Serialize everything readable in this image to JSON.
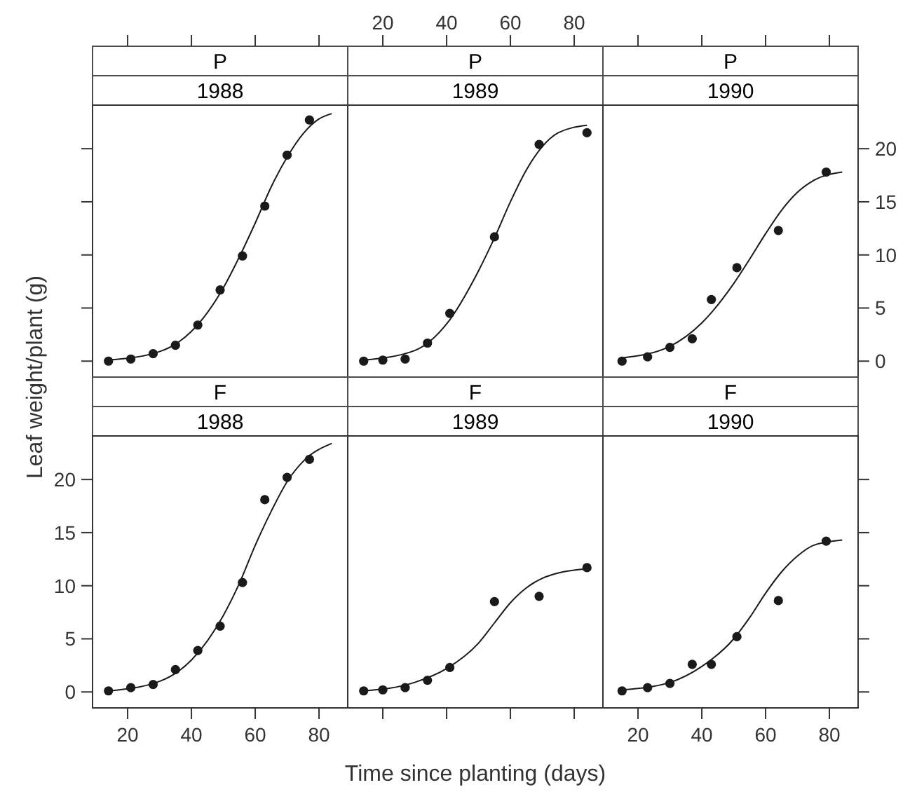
{
  "chart_data": [
    {
      "type": "scatter",
      "title": "P",
      "subtitle": "1988",
      "ylabel": "Leaf weight/plant (g)",
      "xlim": [
        9,
        89
      ],
      "xticks": [
        20,
        40,
        60,
        80
      ],
      "ylim": [
        -1.5,
        24.1
      ],
      "yticks": [
        0,
        5,
        10,
        15,
        20
      ],
      "tick_labels": false,
      "series": [
        {
          "marker": "circle",
          "color": "#1a1a1a",
          "x": [
            14,
            21,
            28,
            35,
            42,
            49,
            56,
            63,
            70,
            77
          ],
          "values": [
            0,
            0.2,
            0.7,
            1.5,
            3.4,
            6.7,
            9.9,
            14.6,
            19.4,
            22.7
          ]
        },
        {
          "type": "line",
          "marker": "none",
          "color": "#1a1a1a",
          "x": [
            14,
            30,
            40,
            50,
            55,
            60,
            65,
            70,
            75,
            80,
            84
          ],
          "values": [
            0.1,
            0.9,
            2.8,
            6.9,
            9.8,
            13,
            16.4,
            19.2,
            21.4,
            22.8,
            23.3
          ]
        }
      ]
    },
    {
      "type": "scatter",
      "title": "P",
      "subtitle": "1989",
      "xlim": [
        9,
        89
      ],
      "xticks": [
        20,
        40,
        60,
        80
      ],
      "ylim": [
        -1.5,
        24.1
      ],
      "yticks": [
        0,
        5,
        10,
        15,
        20
      ],
      "tick_labels": "x",
      "series": [
        {
          "marker": "circle",
          "color": "#1a1a1a",
          "x": [
            14,
            20,
            27,
            34,
            41,
            55,
            69,
            84
          ],
          "values": [
            0,
            0.1,
            0.2,
            1.7,
            4.5,
            11.7,
            20.4,
            21.5
          ]
        },
        {
          "type": "line",
          "marker": "none",
          "color": "#1a1a1a",
          "x": [
            14,
            30,
            40,
            50,
            55,
            60,
            65,
            70,
            75,
            84
          ],
          "values": [
            0.1,
            1,
            3.5,
            8.5,
            11.6,
            15,
            18,
            20.2,
            21.5,
            22.2
          ]
        }
      ]
    },
    {
      "type": "scatter",
      "title": "P",
      "subtitle": "1990",
      "xlim": [
        9,
        89
      ],
      "xticks": [
        20,
        40,
        60,
        80
      ],
      "ylim": [
        -1.5,
        24.1
      ],
      "yticks": [
        0,
        5,
        10,
        15,
        20
      ],
      "tick_labels": "y",
      "series": [
        {
          "marker": "circle",
          "color": "#1a1a1a",
          "x": [
            15,
            23,
            30,
            37,
            43,
            51,
            64,
            79
          ],
          "values": [
            0,
            0.4,
            1.3,
            2.1,
            5.8,
            8.8,
            12.3,
            17.8
          ]
        },
        {
          "type": "line",
          "marker": "none",
          "color": "#1a1a1a",
          "x": [
            15,
            30,
            40,
            50,
            55,
            60,
            65,
            70,
            75,
            84
          ],
          "values": [
            0.3,
            1.4,
            3.6,
            7.3,
            9.6,
            12,
            14.2,
            15.9,
            17,
            17.8
          ]
        }
      ]
    },
    {
      "type": "scatter",
      "title": "F",
      "subtitle": "1988",
      "xlim": [
        9,
        89
      ],
      "xticks": [
        20,
        40,
        60,
        80
      ],
      "ylim": [
        -1.5,
        24.1
      ],
      "yticks": [
        0,
        5,
        10,
        15,
        20
      ],
      "series": [
        {
          "marker": "circle",
          "color": "#1a1a1a",
          "x": [
            14,
            21,
            28,
            35,
            42,
            49,
            56,
            63,
            70,
            77
          ],
          "values": [
            0.1,
            0.4,
            0.7,
            2.1,
            3.9,
            6.2,
            10.3,
            18.1,
            20.2,
            21.9
          ]
        },
        {
          "type": "line",
          "marker": "none",
          "color": "#1a1a1a",
          "x": [
            14,
            30,
            40,
            50,
            55,
            60,
            65,
            70,
            75,
            84
          ],
          "values": [
            0.1,
            1,
            3,
            7.2,
            10.2,
            13.8,
            17,
            19.8,
            21.7,
            23.4
          ]
        }
      ]
    },
    {
      "type": "scatter",
      "title": "F",
      "subtitle": "1989",
      "xlabel": "Time since planting (days)",
      "xlim": [
        9,
        89
      ],
      "xticks": [
        20,
        40,
        60,
        80
      ],
      "ylim": [
        -1.5,
        24.1
      ],
      "yticks": [
        0,
        5,
        10,
        15,
        20
      ],
      "tick_labels": false,
      "series": [
        {
          "marker": "circle",
          "color": "#1a1a1a",
          "x": [
            14,
            20,
            27,
            34,
            41,
            55,
            69,
            84
          ],
          "values": [
            0.1,
            0.2,
            0.4,
            1.1,
            2.3,
            8.5,
            9,
            11.7
          ]
        },
        {
          "type": "line",
          "marker": "none",
          "color": "#1a1a1a",
          "x": [
            14,
            30,
            40,
            50,
            55,
            60,
            65,
            70,
            75,
            84
          ],
          "values": [
            0.1,
            0.9,
            2.2,
            4.6,
            6.5,
            8.4,
            9.8,
            10.7,
            11.2,
            11.6
          ]
        }
      ]
    },
    {
      "type": "scatter",
      "title": "F",
      "subtitle": "1990",
      "xlim": [
        9,
        89
      ],
      "xticks": [
        20,
        40,
        60,
        80
      ],
      "ylim": [
        -1.5,
        24.1
      ],
      "yticks": [
        0,
        5,
        10,
        15,
        20
      ],
      "tick_labels": "x",
      "series": [
        {
          "marker": "circle",
          "color": "#1a1a1a",
          "x": [
            15,
            23,
            30,
            37,
            43,
            51,
            64,
            79
          ],
          "values": [
            0.1,
            0.4,
            0.8,
            2.6,
            2.6,
            5.2,
            8.6,
            14.2
          ]
        },
        {
          "type": "line",
          "marker": "none",
          "color": "#1a1a1a",
          "x": [
            15,
            30,
            40,
            50,
            55,
            60,
            65,
            70,
            75,
            84
          ],
          "values": [
            0.2,
            0.9,
            2.4,
            5,
            7,
            9.3,
            11.3,
            12.8,
            13.8,
            14.3
          ]
        }
      ]
    }
  ]
}
